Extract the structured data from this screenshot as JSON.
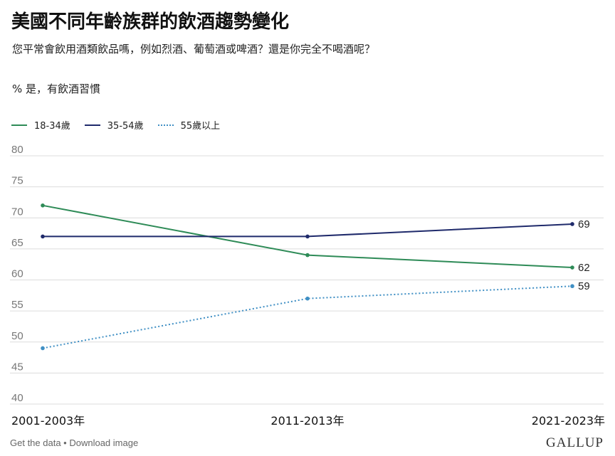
{
  "chart_data": {
    "type": "line",
    "title": "美國不同年齡族群的飲酒趨勢變化",
    "subtitle": "您平常會飲用酒類飲品嗎，例如烈酒、葡萄酒或啤酒？還是你完全不喝酒呢？",
    "ylabel": "% 是，有飲酒習慣",
    "categories": [
      "2001-2003年",
      "2011-2013年",
      "2021-2023年"
    ],
    "ylim": [
      40,
      80
    ],
    "yticks": [
      40,
      45,
      50,
      55,
      60,
      65,
      70,
      75,
      80
    ],
    "grid": true,
    "legend_position": "top-left",
    "series": [
      {
        "name": "18-34歲",
        "values": [
          72,
          64,
          62
        ],
        "color": "#2e8b57",
        "style": "solid"
      },
      {
        "name": "35-54歲",
        "values": [
          67,
          67,
          69
        ],
        "color": "#1f2a6b",
        "style": "solid"
      },
      {
        "name": "55歲以上",
        "values": [
          49,
          57,
          59
        ],
        "color": "#3f8fc4",
        "style": "dotted"
      }
    ],
    "end_labels": [
      "62",
      "69",
      "59"
    ]
  },
  "footer": {
    "get_data": "Get the data",
    "separator": " • ",
    "download": "Download image"
  },
  "brand": "GALLUP"
}
